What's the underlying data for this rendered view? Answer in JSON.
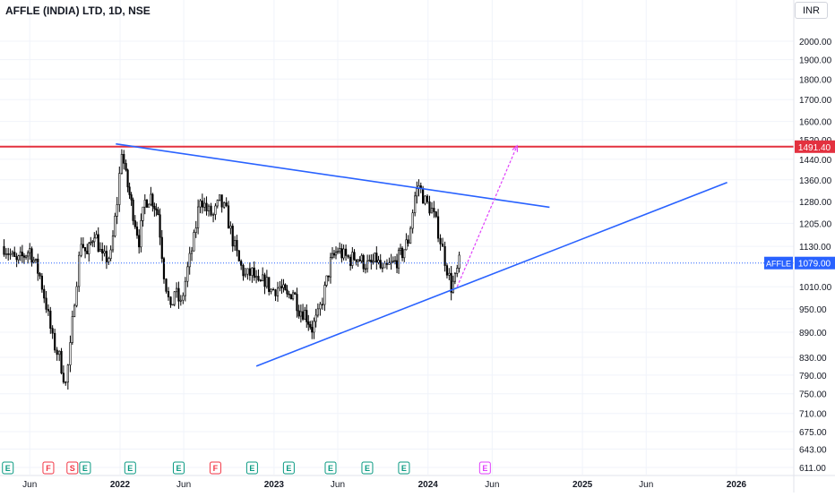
{
  "header": {
    "title": "AFFLE (INDIA) LTD, 1D, NSE",
    "currency": "INR"
  },
  "chart_data": {
    "type": "candlestick",
    "symbol": "AFFLE",
    "interval": "1D",
    "exchange": "NSE",
    "currency": "INR",
    "price_axis_labels": [
      "2000.00",
      "1900.00",
      "1800.00",
      "1700.00",
      "1600.00",
      "1520.00",
      "1440.00",
      "1360.00",
      "1280.00",
      "1205.00",
      "1130.00",
      "1010.00",
      "950.00",
      "890.00",
      "830.00",
      "790.00",
      "750.00",
      "710.00",
      "675.00",
      "643.00",
      "611.00"
    ],
    "price_axis_values": [
      2000,
      1900,
      1800,
      1700,
      1600,
      1520,
      1440,
      1360,
      1280,
      1205,
      1130,
      1010,
      950,
      890,
      830,
      790,
      750,
      710,
      675,
      643,
      611
    ],
    "price_scale": "log",
    "time_axis_labels": [
      "Jun",
      "2022",
      "Jun",
      "2023",
      "Jun",
      "2024",
      "Jun",
      "2025",
      "Jun",
      "2026"
    ],
    "time_axis_dates": [
      "2021-06-01",
      "2022-01-01",
      "2022-06-01",
      "2023-01-01",
      "2023-06-01",
      "2024-01-01",
      "2024-06-01",
      "2025-01-01",
      "2025-06-01",
      "2026-01-01"
    ],
    "current_price": {
      "label": "AFFLE",
      "value": "1079.00",
      "color": "#2962ff"
    },
    "horizontal_level": {
      "value": "1491.40",
      "color": "#e3313f"
    },
    "price_path": [
      [
        "2021-04-01",
        1130
      ],
      [
        "2021-05-01",
        1080
      ],
      [
        "2021-06-01",
        1120
      ],
      [
        "2021-06-25",
        1040
      ],
      [
        "2021-07-10",
        960
      ],
      [
        "2021-07-25",
        870
      ],
      [
        "2021-08-10",
        830
      ],
      [
        "2021-08-25",
        770
      ],
      [
        "2021-09-05",
        850
      ],
      [
        "2021-09-15",
        980
      ],
      [
        "2021-10-01",
        1150
      ],
      [
        "2021-10-15",
        1100
      ],
      [
        "2021-11-01",
        1180
      ],
      [
        "2021-11-20",
        1090
      ],
      [
        "2021-12-10",
        1100
      ],
      [
        "2021-12-25",
        1280
      ],
      [
        "2022-01-05",
        1480
      ],
      [
        "2022-01-15",
        1370
      ],
      [
        "2022-02-01",
        1240
      ],
      [
        "2022-02-15",
        1150
      ],
      [
        "2022-03-01",
        1280
      ],
      [
        "2022-03-15",
        1300
      ],
      [
        "2022-04-01",
        1240
      ],
      [
        "2022-04-15",
        1050
      ],
      [
        "2022-05-01",
        940
      ],
      [
        "2022-05-10",
        1000
      ],
      [
        "2022-05-25",
        960
      ],
      [
        "2022-06-10",
        1060
      ],
      [
        "2022-06-25",
        1150
      ],
      [
        "2022-07-10",
        1300
      ],
      [
        "2022-07-25",
        1250
      ],
      [
        "2022-08-10",
        1230
      ],
      [
        "2022-08-25",
        1280
      ],
      [
        "2022-09-10",
        1240
      ],
      [
        "2022-09-25",
        1150
      ],
      [
        "2022-10-10",
        1080
      ],
      [
        "2022-10-25",
        1040
      ],
      [
        "2022-11-10",
        1050
      ],
      [
        "2022-11-25",
        1010
      ],
      [
        "2022-12-10",
        1030
      ],
      [
        "2022-12-25",
        1000
      ],
      [
        "2023-01-15",
        1010
      ],
      [
        "2023-02-01",
        980
      ],
      [
        "2023-02-15",
        1000
      ],
      [
        "2023-03-01",
        950
      ],
      [
        "2023-03-15",
        940
      ],
      [
        "2023-04-01",
        900
      ],
      [
        "2023-04-15",
        930
      ],
      [
        "2023-05-01",
        1000
      ],
      [
        "2023-05-15",
        1080
      ],
      [
        "2023-06-01",
        1120
      ],
      [
        "2023-06-15",
        1100
      ],
      [
        "2023-07-01",
        1090
      ],
      [
        "2023-07-15",
        1100
      ],
      [
        "2023-08-01",
        1080
      ],
      [
        "2023-08-15",
        1070
      ],
      [
        "2023-09-01",
        1090
      ],
      [
        "2023-09-15",
        1050
      ],
      [
        "2023-10-01",
        1070
      ],
      [
        "2023-10-15",
        1080
      ],
      [
        "2023-11-01",
        1110
      ],
      [
        "2023-11-15",
        1150
      ],
      [
        "2023-12-01",
        1300
      ],
      [
        "2023-12-10",
        1340
      ],
      [
        "2023-12-25",
        1280
      ],
      [
        "2024-01-10",
        1250
      ],
      [
        "2024-01-25",
        1180
      ],
      [
        "2024-02-10",
        1090
      ],
      [
        "2024-02-25",
        1010
      ],
      [
        "2024-03-05",
        1030
      ],
      [
        "2024-03-15",
        1079
      ]
    ],
    "trend_lines": [
      {
        "name": "descending-resistance",
        "color": "#2962ff",
        "from": [
          "2021-12-22",
          1503
        ],
        "to": [
          "2024-10-15",
          1260
        ]
      },
      {
        "name": "ascending-support",
        "color": "#2962ff",
        "from": [
          "2022-11-20",
          810
        ],
        "to": [
          "2025-12-10",
          1350
        ]
      }
    ],
    "projection_arrow": {
      "color": "#e040fb",
      "from": [
        "2024-03-10",
        1010
      ],
      "to": [
        "2024-07-30",
        1495
      ]
    },
    "event_markers": [
      {
        "date": "2021-04-10",
        "letter": "E",
        "type": "earnings"
      },
      {
        "date": "2021-07-15",
        "letter": "F",
        "type": "financials"
      },
      {
        "date": "2021-09-10",
        "letter": "S",
        "type": "split"
      },
      {
        "date": "2021-10-10",
        "letter": "E",
        "type": "earnings"
      },
      {
        "date": "2022-01-25",
        "letter": "E",
        "type": "earnings"
      },
      {
        "date": "2022-05-20",
        "letter": "E",
        "type": "earnings"
      },
      {
        "date": "2022-08-15",
        "letter": "F",
        "type": "financials"
      },
      {
        "date": "2022-11-10",
        "letter": "E",
        "type": "earnings"
      },
      {
        "date": "2023-02-05",
        "letter": "E",
        "type": "earnings"
      },
      {
        "date": "2023-05-15",
        "letter": "E",
        "type": "earnings"
      },
      {
        "date": "2023-08-10",
        "letter": "E",
        "type": "earnings"
      },
      {
        "date": "2023-11-05",
        "letter": "E",
        "type": "earnings"
      },
      {
        "date": "2024-05-15",
        "letter": "E",
        "type": "earnings-upcoming"
      }
    ],
    "colors": {
      "up": "#ffffff",
      "down": "#000000",
      "grid": "#f0f3fa",
      "axis_text": "#131722",
      "earnings": "#089981",
      "financials": "#f23645",
      "upcoming": "#e040fb"
    }
  }
}
